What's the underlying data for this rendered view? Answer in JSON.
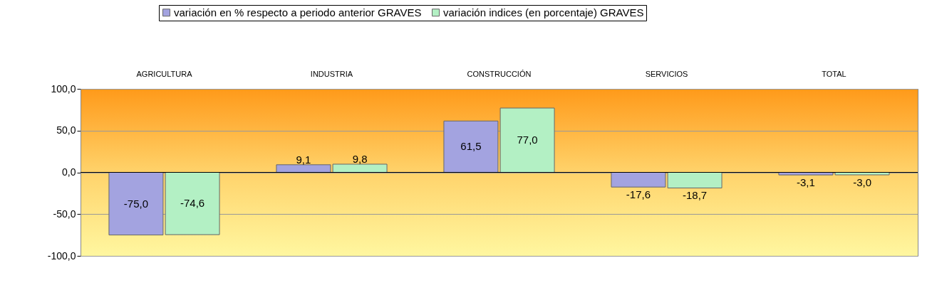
{
  "chart_data": {
    "type": "bar",
    "categories": [
      "AGRICULTURA",
      "INDUSTRIA",
      "CONSTRUCCIÓN",
      "SERVICIOS",
      "TOTAL"
    ],
    "series": [
      {
        "name": "variación en % respecto a periodo anterior GRAVES",
        "color": "#a3a3e0",
        "values": [
          -75.0,
          9.1,
          61.5,
          -17.6,
          -3.1
        ],
        "value_labels": [
          "-75,0",
          "9,1",
          "61,5",
          "-17,6",
          "-3,1"
        ]
      },
      {
        "name": "variación indices (en porcentaje) GRAVES",
        "color": "#b3f0c4",
        "values": [
          -74.6,
          9.8,
          77.0,
          -18.7,
          -3.0
        ],
        "value_labels": [
          "-74,6",
          "9,8",
          "77,0",
          "-18,7",
          "-3,0"
        ]
      }
    ],
    "ylim": [
      -100,
      100
    ],
    "yticks": [
      {
        "value": -100,
        "label": "-100,0"
      },
      {
        "value": -50,
        "label": "-50,0"
      },
      {
        "value": 0,
        "label": "0,0"
      },
      {
        "value": 50,
        "label": "50,0"
      },
      {
        "value": 100,
        "label": "100,0"
      }
    ],
    "grid": "y",
    "legend": "top"
  }
}
